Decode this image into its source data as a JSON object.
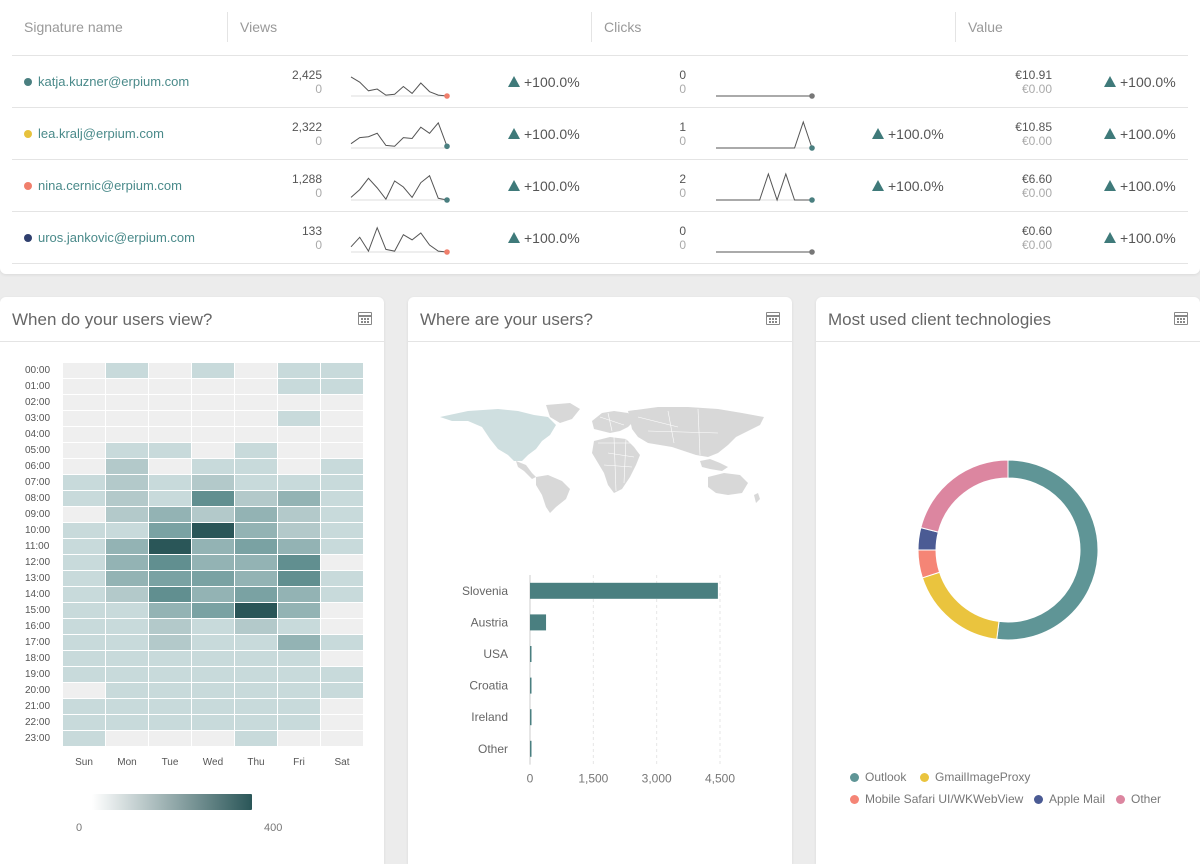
{
  "table": {
    "headers": {
      "signature": "Signature name",
      "views": "Views",
      "clicks": "Clicks",
      "value": "Value"
    },
    "rows": [
      {
        "email": "katja.kuzner@erpium.com",
        "dot_color": "#4a7f80",
        "views": "2,425",
        "views_prev": "0",
        "views_delta": "+100.0%",
        "clicks": "0",
        "clicks_prev": "0",
        "clicks_delta": "",
        "value": "€10.91",
        "value_prev": "€0.00",
        "value_delta": "+100.0%",
        "views_trend": [
          22,
          16,
          6,
          8,
          1,
          2,
          11,
          3,
          15,
          5,
          1,
          0
        ],
        "views_end": "#f07f6c",
        "clicks_trend": [
          0,
          0,
          0,
          0,
          0,
          0,
          0,
          0,
          0,
          0,
          0,
          0
        ],
        "clicks_end": "#777777"
      },
      {
        "email": "lea.kralj@erpium.com",
        "dot_color": "#e7c23d",
        "views": "2,322",
        "views_prev": "0",
        "views_delta": "+100.0%",
        "clicks": "1",
        "clicks_prev": "0",
        "clicks_delta": "+100.0%",
        "value": "€10.85",
        "value_prev": "€0.00",
        "value_delta": "+100.0%",
        "views_trend": [
          5,
          12,
          13,
          17,
          3,
          2,
          12,
          11,
          24,
          17,
          29,
          2
        ],
        "views_end": "#4a7f80",
        "clicks_trend": [
          0,
          0,
          0,
          0,
          0,
          0,
          0,
          0,
          0,
          0,
          30,
          0
        ],
        "clicks_end": "#4a7f80"
      },
      {
        "email": "nina.cernic@erpium.com",
        "dot_color": "#f07f6c",
        "views": "1,288",
        "views_prev": "0",
        "views_delta": "+100.0%",
        "clicks": "2",
        "clicks_prev": "0",
        "clicks_delta": "+100.0%",
        "value": "€6.60",
        "value_prev": "€0.00",
        "value_delta": "+100.0%",
        "views_trend": [
          3,
          12,
          25,
          14,
          1,
          22,
          15,
          3,
          20,
          28,
          2,
          0
        ],
        "views_end": "#4a7f80",
        "clicks_trend": [
          0,
          0,
          0,
          0,
          0,
          0,
          30,
          0,
          30,
          0,
          0,
          0
        ],
        "clicks_end": "#4a7f80"
      },
      {
        "email": "uros.jankovic@erpium.com",
        "dot_color": "#2f3f6e",
        "views": "133",
        "views_prev": "0",
        "views_delta": "+100.0%",
        "clicks": "0",
        "clicks_prev": "0",
        "clicks_delta": "",
        "value": "€0.60",
        "value_prev": "€0.00",
        "value_delta": "+100.0%",
        "views_trend": [
          6,
          17,
          1,
          28,
          3,
          1,
          20,
          14,
          22,
          8,
          1,
          0
        ],
        "views_end": "#f07f6c",
        "clicks_trend": [
          0,
          0,
          0,
          0,
          0,
          0,
          0,
          0,
          0,
          0,
          0,
          0
        ],
        "clicks_end": "#777777"
      }
    ]
  },
  "views_card": {
    "title": "When do your users view?",
    "hours": [
      "00:00",
      "01:00",
      "02:00",
      "03:00",
      "04:00",
      "05:00",
      "06:00",
      "07:00",
      "08:00",
      "09:00",
      "10:00",
      "11:00",
      "12:00",
      "13:00",
      "14:00",
      "15:00",
      "16:00",
      "17:00",
      "18:00",
      "19:00",
      "20:00",
      "21:00",
      "22:00",
      "23:00"
    ],
    "days": [
      "Sun",
      "Mon",
      "Tue",
      "Wed",
      "Thu",
      "Fri",
      "Sat"
    ],
    "heat": [
      [
        0,
        1,
        0,
        1,
        0,
        1,
        1
      ],
      [
        0,
        0,
        0,
        0,
        0,
        1,
        1
      ],
      [
        0,
        0,
        0,
        0,
        0,
        0,
        0
      ],
      [
        0,
        0,
        0,
        0,
        0,
        1,
        0
      ],
      [
        0,
        0,
        0,
        0,
        0,
        0,
        0
      ],
      [
        0,
        1,
        1,
        0,
        1,
        0,
        0
      ],
      [
        0,
        2,
        0,
        1,
        1,
        0,
        1
      ],
      [
        1,
        2,
        1,
        2,
        1,
        1,
        1
      ],
      [
        1,
        2,
        1,
        5,
        2,
        3,
        1
      ],
      [
        0,
        2,
        3,
        2,
        3,
        2,
        1
      ],
      [
        1,
        1,
        4,
        7,
        3,
        2,
        1
      ],
      [
        1,
        3,
        7,
        3,
        4,
        3,
        1
      ],
      [
        1,
        3,
        5,
        3,
        3,
        5,
        0
      ],
      [
        1,
        3,
        4,
        4,
        3,
        5,
        1
      ],
      [
        1,
        2,
        5,
        3,
        4,
        3,
        1
      ],
      [
        1,
        1,
        3,
        4,
        7,
        3,
        0
      ],
      [
        1,
        1,
        2,
        1,
        2,
        1,
        0
      ],
      [
        1,
        1,
        2,
        1,
        1,
        3,
        1
      ],
      [
        1,
        1,
        1,
        1,
        1,
        1,
        0
      ],
      [
        1,
        1,
        1,
        1,
        1,
        1,
        1
      ],
      [
        0,
        1,
        1,
        1,
        1,
        1,
        1
      ],
      [
        1,
        1,
        1,
        1,
        1,
        1,
        0
      ],
      [
        1,
        1,
        1,
        1,
        1,
        1,
        0
      ],
      [
        1,
        0,
        0,
        0,
        1,
        0,
        0
      ]
    ],
    "scale_min": "0",
    "scale_max": "400"
  },
  "where_card": {
    "title": "Where are your users?",
    "countries": [
      "Slovenia",
      "Austria",
      "USA",
      "Croatia",
      "Ireland",
      "Other"
    ],
    "values": [
      4450,
      380,
      25,
      15,
      10,
      5
    ],
    "ticks": [
      "0",
      "1,500",
      "3,000",
      "4,500"
    ],
    "bar_color": "#4a7f80"
  },
  "tech_card": {
    "title": "Most used client technologies",
    "items": [
      {
        "label": "Outlook",
        "value": 52,
        "color": "#5f9596"
      },
      {
        "label": "GmailImageProxy",
        "value": 18,
        "color": "#eac43e"
      },
      {
        "label": "Mobile Safari UI/WKWebView",
        "value": 5,
        "color": "#f58576"
      },
      {
        "label": "Apple Mail",
        "value": 4,
        "color": "#4b5b94"
      },
      {
        "label": "Other",
        "value": 21,
        "color": "#dc86a0"
      }
    ]
  }
}
